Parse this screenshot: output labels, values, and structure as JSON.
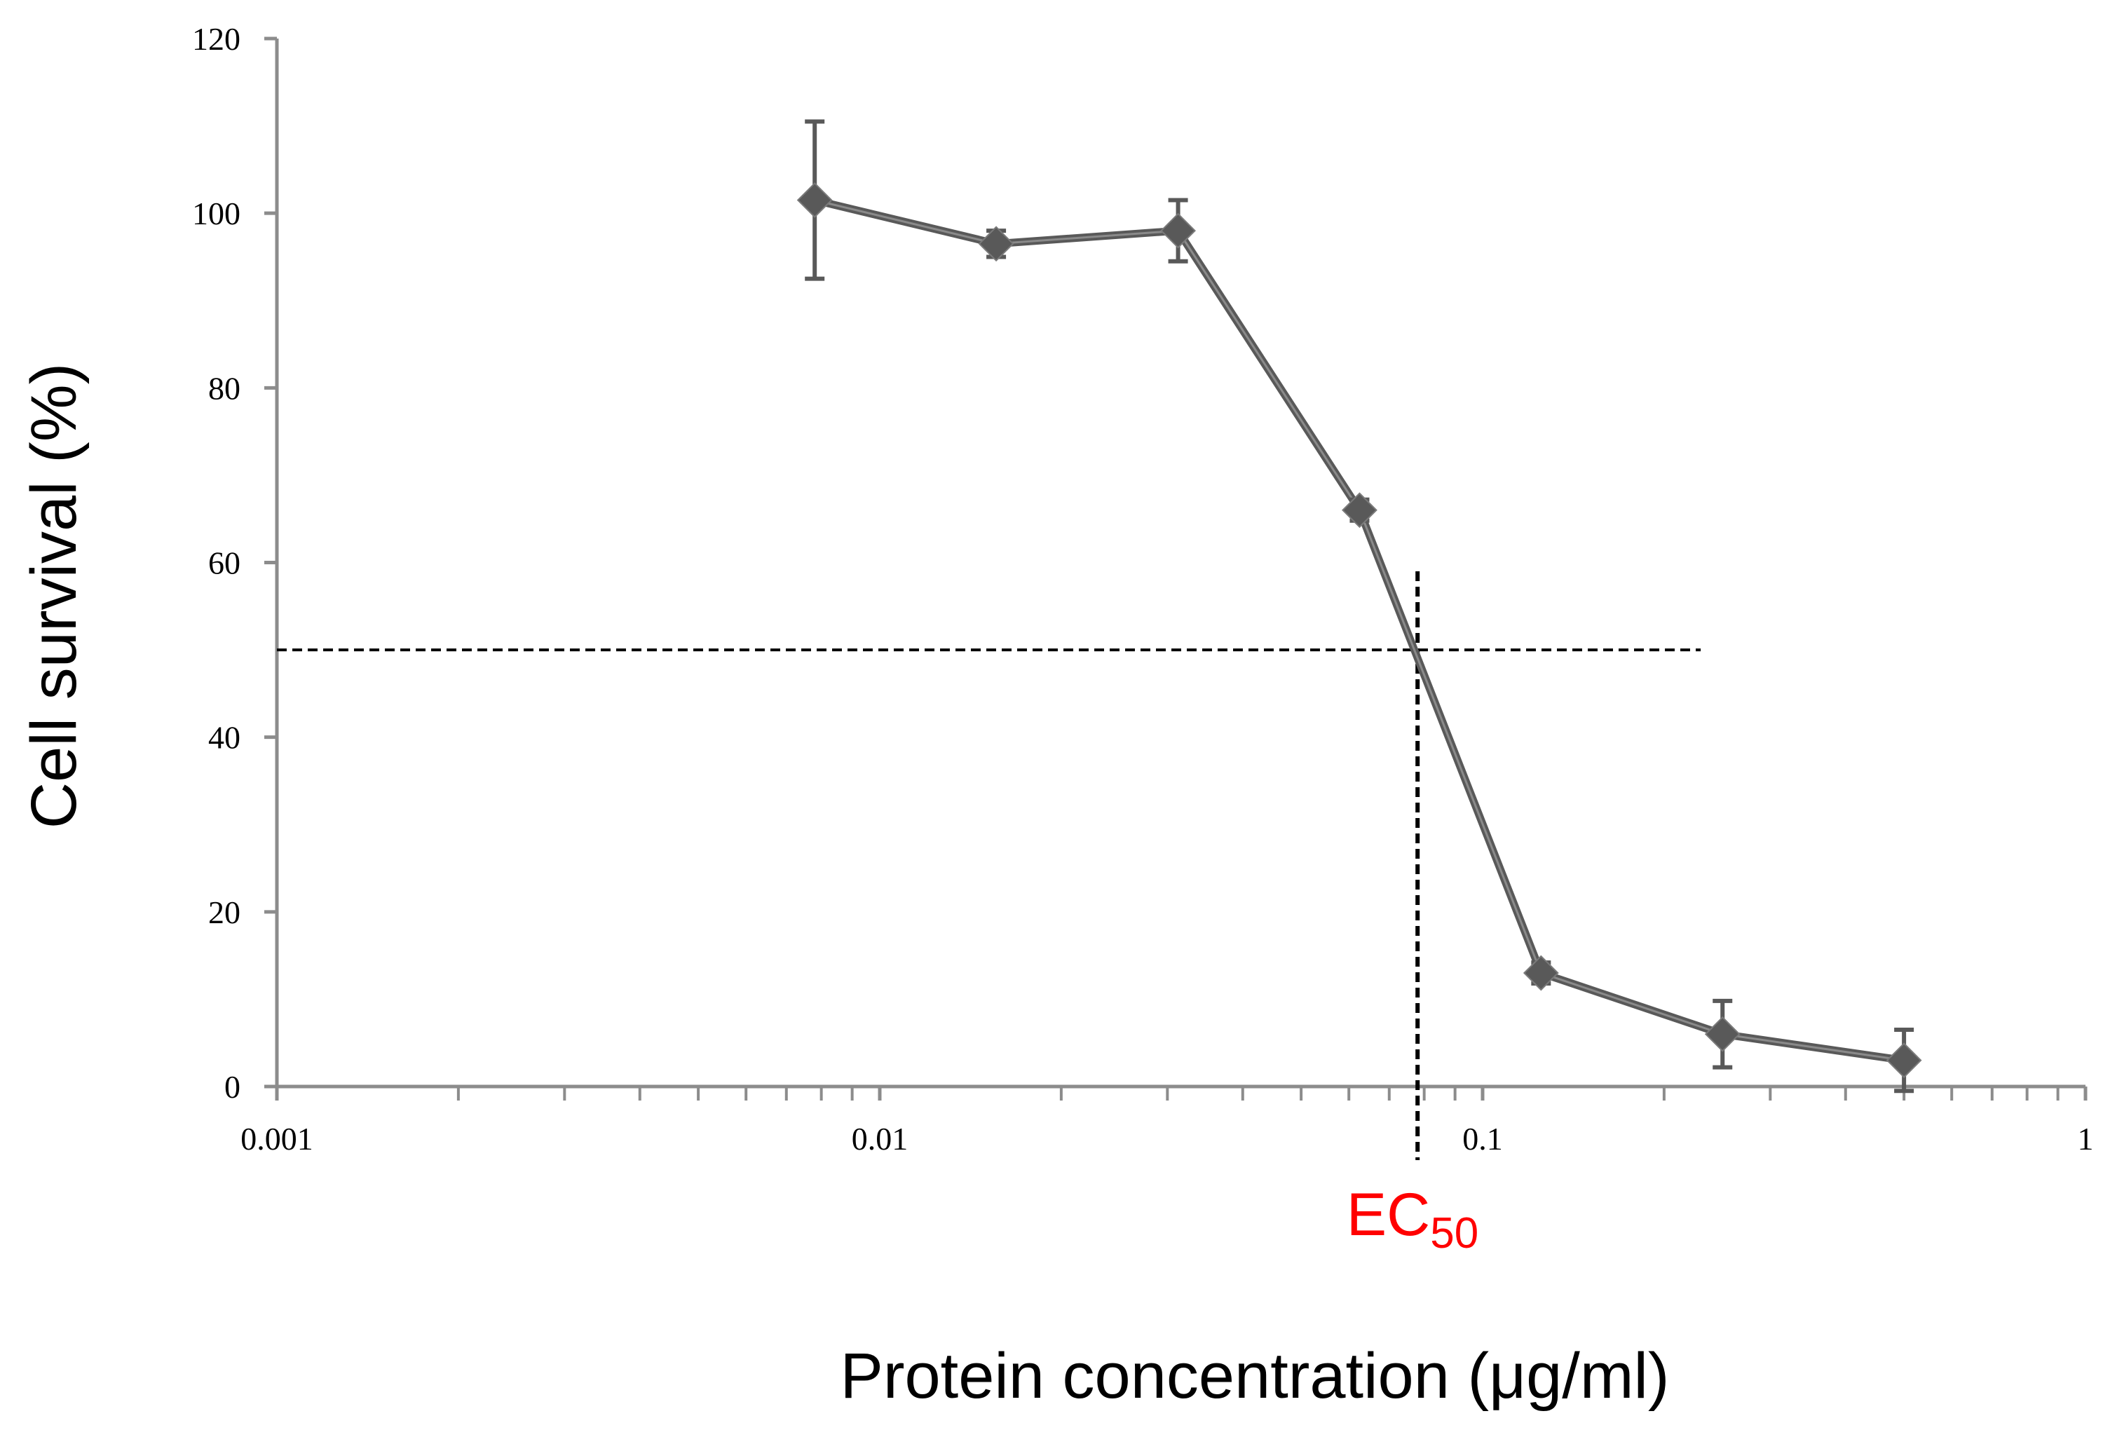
{
  "chart_data": {
    "type": "line",
    "xlabel": "Protein concentration (μg/ml)",
    "ylabel": "Cell survival (%)",
    "xscale": "log",
    "xlim": [
      0.001,
      1
    ],
    "ylim": [
      0,
      120
    ],
    "xticks": [
      {
        "value": 0.001,
        "label": "0.001"
      },
      {
        "value": 0.01,
        "label": "0.01"
      },
      {
        "value": 0.1,
        "label": "0.1"
      },
      {
        "value": 1,
        "label": "1"
      }
    ],
    "yticks": [
      {
        "value": 0,
        "label": "0"
      },
      {
        "value": 20,
        "label": "20"
      },
      {
        "value": 40,
        "label": "40"
      },
      {
        "value": 60,
        "label": "60"
      },
      {
        "value": 80,
        "label": "80"
      },
      {
        "value": 100,
        "label": "100"
      },
      {
        "value": 120,
        "label": "120"
      }
    ],
    "grid": false,
    "series": [
      {
        "x": [
          0.0078,
          0.0156,
          0.03125,
          0.0625,
          0.125,
          0.25,
          0.5
        ],
        "y": [
          101.5,
          96.5,
          98,
          66,
          13,
          6,
          3
        ],
        "error": [
          9,
          1.5,
          3.5,
          1.2,
          1.2,
          3.8,
          3.5
        ],
        "marker": "diamond",
        "color": "#595959"
      }
    ],
    "annotations": {
      "ec50": {
        "label_main": "EC",
        "label_sub": "50",
        "color": "#ff0000",
        "x": 0.078,
        "y": 50,
        "hline_x_end": 0.23,
        "vline_y_top": 59,
        "line_color": "#000000"
      }
    }
  }
}
